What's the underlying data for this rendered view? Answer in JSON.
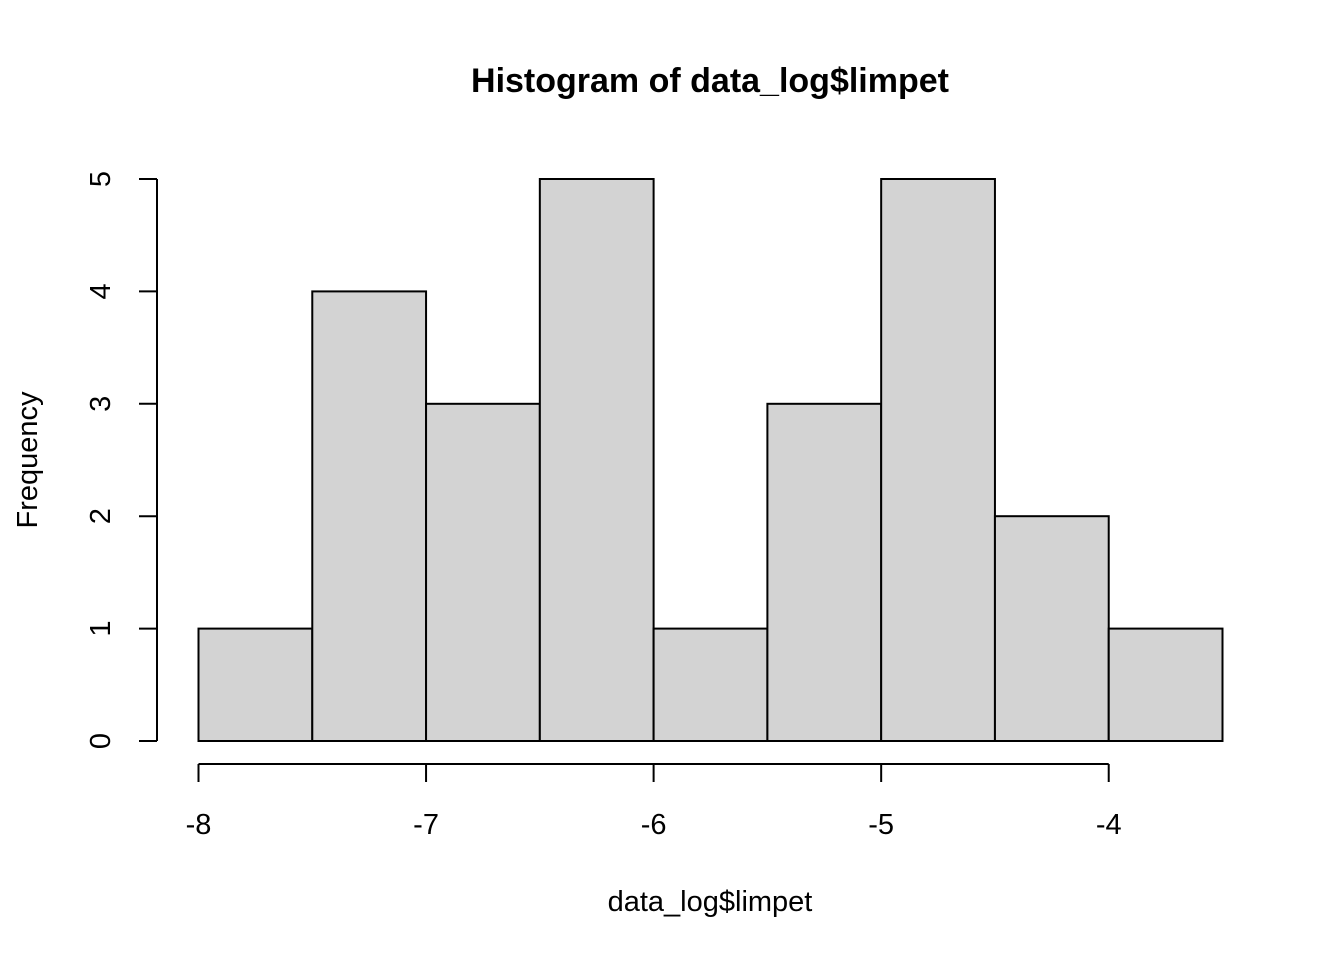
{
  "chart_data": {
    "type": "bar",
    "subtype": "histogram",
    "title": "Histogram of data_log$limpet",
    "xlabel": "data_log$limpet",
    "ylabel": "Frequency",
    "bins": [
      {
        "start": -8.0,
        "end": -7.5,
        "count": 1
      },
      {
        "start": -7.5,
        "end": -7.0,
        "count": 4
      },
      {
        "start": -7.0,
        "end": -6.5,
        "count": 3
      },
      {
        "start": -6.5,
        "end": -6.0,
        "count": 5
      },
      {
        "start": -6.0,
        "end": -5.5,
        "count": 1
      },
      {
        "start": -5.5,
        "end": -5.0,
        "count": 3
      },
      {
        "start": -5.0,
        "end": -4.5,
        "count": 5
      },
      {
        "start": -4.5,
        "end": -4.0,
        "count": 2
      },
      {
        "start": -4.0,
        "end": -3.5,
        "count": 1
      }
    ],
    "xlim": [
      -8.0,
      -3.5
    ],
    "ylim": [
      0,
      5
    ],
    "x_ticks": [
      -8,
      -7,
      -6,
      -5,
      -4
    ],
    "y_ticks": [
      0,
      1,
      2,
      3,
      4,
      5
    ],
    "bar_color": "#d3d3d3",
    "grid": false,
    "legend": "none"
  }
}
